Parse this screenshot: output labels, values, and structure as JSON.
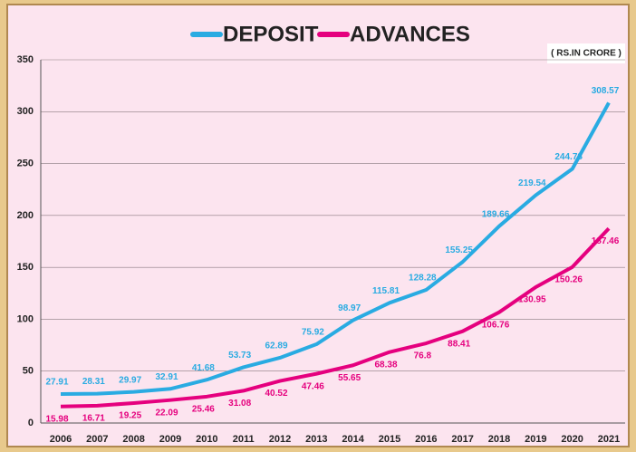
{
  "chart_data": {
    "type": "line",
    "annotation": "( RS.IN CRORE )",
    "categories": [
      "2006",
      "2007",
      "2008",
      "2009",
      "2010",
      "2011",
      "2012",
      "2013",
      "2014",
      "2015",
      "2016",
      "2017",
      "2018",
      "2019",
      "2020",
      "2021"
    ],
    "series": [
      {
        "name": "DEPOSIT",
        "color": "#29abe2",
        "values": [
          27.91,
          28.31,
          29.97,
          32.91,
          41.68,
          53.73,
          62.89,
          75.92,
          98.97,
          115.81,
          128.28,
          155.25,
          189.66,
          219.54,
          244.78,
          308.57
        ]
      },
      {
        "name": "ADVANCES",
        "color": "#e5007e",
        "values": [
          15.98,
          16.71,
          19.25,
          22.09,
          25.46,
          31.08,
          40.52,
          47.46,
          55.65,
          68.38,
          76.8,
          88.41,
          106.76,
          130.95,
          150.26,
          187.46
        ]
      }
    ],
    "ylim": [
      0,
      350
    ],
    "yticks": [
      0,
      50,
      100,
      150,
      200,
      250,
      300,
      350
    ],
    "grid": true,
    "legend": "top"
  }
}
